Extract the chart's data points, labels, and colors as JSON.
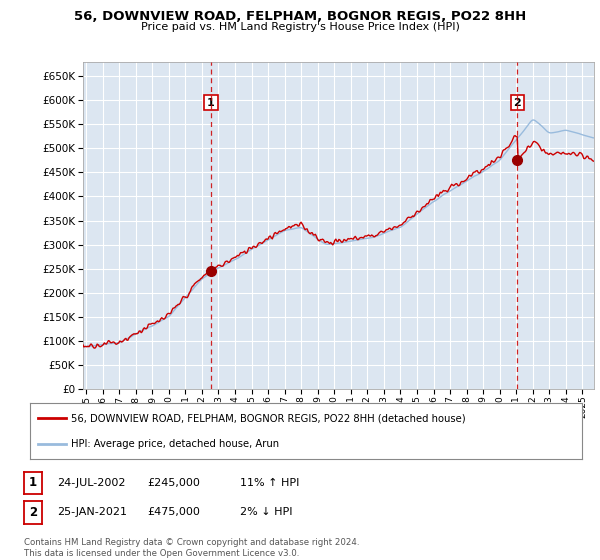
{
  "title": "56, DOWNVIEW ROAD, FELPHAM, BOGNOR REGIS, PO22 8HH",
  "subtitle": "Price paid vs. HM Land Registry's House Price Index (HPI)",
  "sale1_date_label": "24-JUL-2002",
  "sale1_price": 245000,
  "sale1_hpi_pct": "11% ↑ HPI",
  "sale2_date_label": "25-JAN-2021",
  "sale2_price": 475000,
  "sale2_hpi_pct": "2% ↓ HPI",
  "sale1_year": 2002.55,
  "sale2_year": 2021.07,
  "legend_line1": "56, DOWNVIEW ROAD, FELPHAM, BOGNOR REGIS, PO22 8HH (detached house)",
  "legend_line2": "HPI: Average price, detached house, Arun",
  "footnote": "Contains HM Land Registry data © Crown copyright and database right 2024.\nThis data is licensed under the Open Government Licence v3.0.",
  "line_color_sale": "#cc0000",
  "line_color_hpi": "#99bbdd",
  "plot_bg_color": "#dce6f1",
  "grid_color": "#ffffff",
  "ylim": [
    0,
    680000
  ],
  "xlim_start": 1994.8,
  "xlim_end": 2025.7,
  "fig_width": 6.0,
  "fig_height": 5.6,
  "dpi": 100
}
